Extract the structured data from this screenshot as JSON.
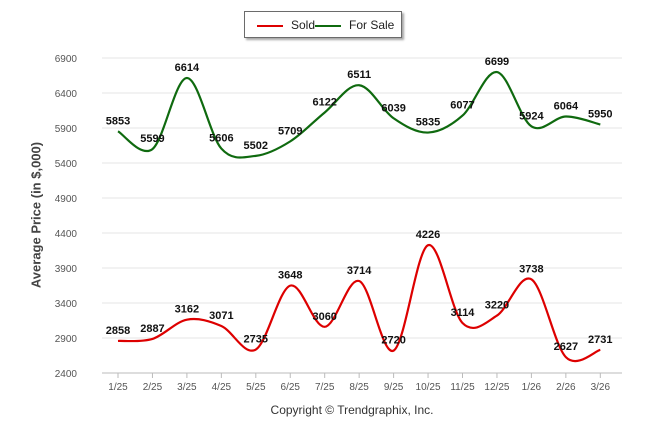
{
  "chart_data": {
    "type": "line",
    "ylabel": "Average Price (in $,000)",
    "footer": "Copyright © Trendgraphix, Inc.",
    "ylim": [
      2400,
      6900
    ],
    "yticks": [
      2400,
      2900,
      3400,
      3900,
      4400,
      4900,
      5400,
      5900,
      6400,
      6900
    ],
    "categories": [
      "1/25",
      "2/25",
      "3/25",
      "4/25",
      "5/25",
      "6/25",
      "7/25",
      "8/25",
      "9/25",
      "10/25",
      "11/25",
      "12/25",
      "1/26",
      "2/26",
      "3/26"
    ],
    "series": [
      {
        "name": "Sold",
        "color": "#dd0000",
        "values": [
          2858,
          2887,
          3162,
          3071,
          2735,
          3648,
          3060,
          3714,
          2720,
          4226,
          3114,
          3220,
          3738,
          2627,
          2731
        ]
      },
      {
        "name": "For Sale",
        "color": "#0f6a0f",
        "values": [
          5853,
          5599,
          6614,
          5606,
          5502,
          5709,
          6122,
          6511,
          6039,
          5835,
          6077,
          6699,
          5924,
          6064,
          5950
        ]
      }
    ]
  }
}
